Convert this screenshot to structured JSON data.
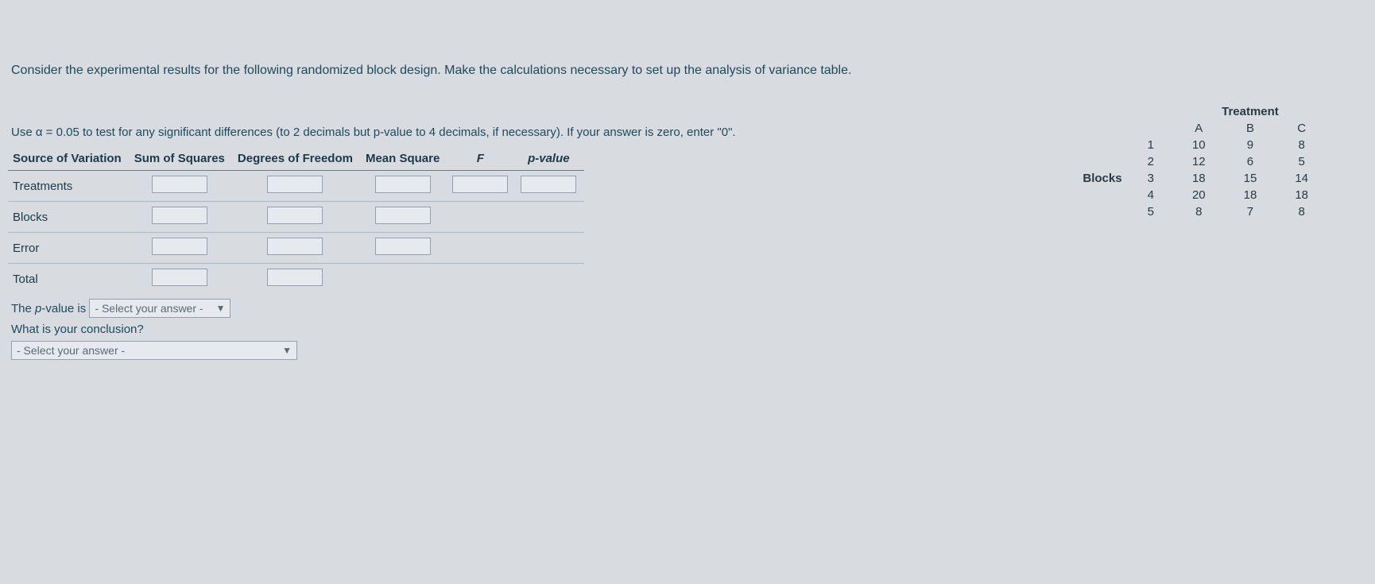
{
  "question": "Consider the experimental results for the following randomized block design. Make the calculations necessary to set up the analysis of variance table.",
  "instruction_prefix": "Use α = ",
  "alpha": "0.05",
  "instruction_suffix": " to test for any significant differences (to 2 decimals but p-value to 4 decimals, if necessary). If your answer is zero, enter \"0\".",
  "data_table": {
    "treatment_label": "Treatment",
    "blocks_label": "Blocks",
    "col_headers": [
      "A",
      "B",
      "C"
    ],
    "row_headers": [
      "1",
      "2",
      "3",
      "4",
      "5"
    ],
    "rows": [
      [
        "10",
        "9",
        "8"
      ],
      [
        "12",
        "6",
        "5"
      ],
      [
        "18",
        "15",
        "14"
      ],
      [
        "20",
        "18",
        "18"
      ],
      [
        "8",
        "7",
        "8"
      ]
    ]
  },
  "anova": {
    "headers": [
      "Source of Variation",
      "Sum of Squares",
      "Degrees of Freedom",
      "Mean Square",
      "F",
      "p-value"
    ],
    "rows": [
      {
        "label": "Treatments",
        "inputs": [
          true,
          true,
          true,
          true,
          true
        ]
      },
      {
        "label": "Blocks",
        "inputs": [
          true,
          true,
          true,
          false,
          false
        ]
      },
      {
        "label": "Error",
        "inputs": [
          true,
          true,
          true,
          false,
          false
        ]
      },
      {
        "label": "Total",
        "inputs": [
          true,
          true,
          false,
          false,
          false
        ]
      }
    ]
  },
  "pvalue_line": {
    "prefix": "The p-value is",
    "select_placeholder": "- Select your answer -"
  },
  "conclusion": {
    "question": "What is your conclusion?",
    "select_placeholder": "- Select your answer -"
  },
  "colors": {
    "background": "#d8dce0",
    "text": "#1a3a4a",
    "border": "#95a0a8",
    "input_bg": "#e6eaee"
  }
}
